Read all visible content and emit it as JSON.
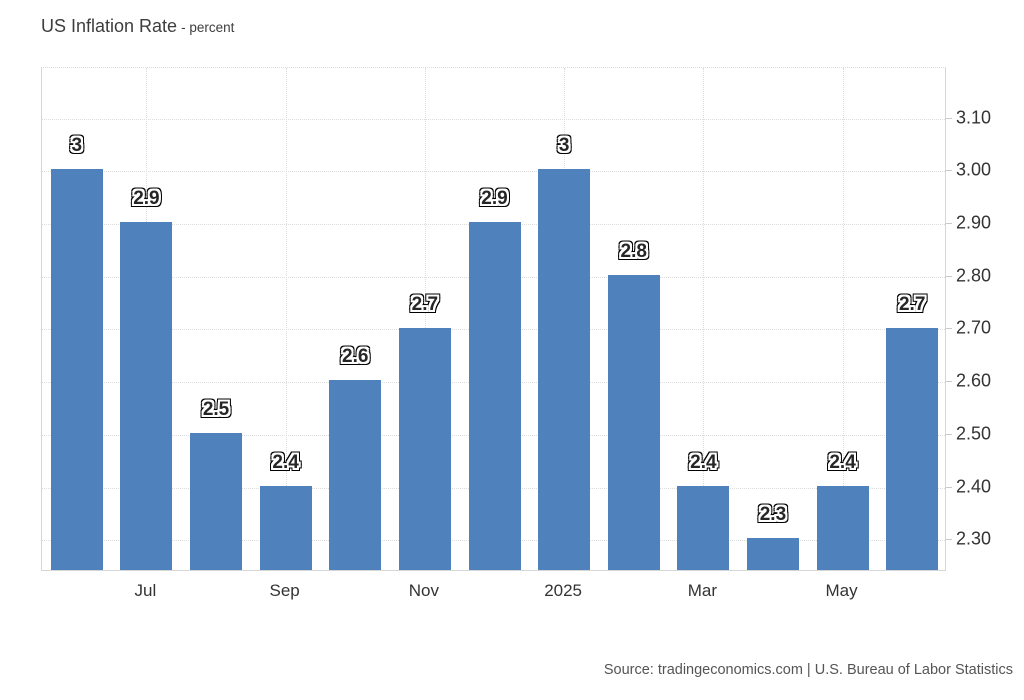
{
  "title": {
    "main": "US Inflation Rate",
    "sub": "- percent"
  },
  "source": "Source: tradingeconomics.com | U.S. Bureau of Labor Statistics",
  "colors": {
    "bar": "#4F81BD",
    "gridline": "#dcdcdc",
    "plot_border": "#d6d6d6",
    "axis_text": "#333333",
    "title_text": "#3d3d3d",
    "source_text": "#555555",
    "value_label_text": "#262626",
    "background": "#ffffff"
  },
  "chart_data": {
    "type": "bar",
    "title": "US Inflation Rate - percent",
    "xlabel": "",
    "ylabel": "percent",
    "categories": [
      "",
      "Jul",
      "",
      "Sep",
      "",
      "Nov",
      "",
      "2025",
      "",
      "Mar",
      "",
      "May",
      ""
    ],
    "values": [
      3,
      2.9,
      2.5,
      2.4,
      2.6,
      2.7,
      2.9,
      3,
      2.8,
      2.4,
      2.3,
      2.4,
      2.7
    ],
    "bar_value_labels": [
      "3",
      "2.9",
      "2.5",
      "2.4",
      "2.6",
      "2.7",
      "2.9",
      "3",
      "2.8",
      "2.4",
      "2.3",
      "2.4",
      "2.7"
    ],
    "y_ticks": [
      {
        "value": 3.1,
        "label": "3.10"
      },
      {
        "value": 3.0,
        "label": "3.00"
      },
      {
        "value": 2.9,
        "label": "2.90"
      },
      {
        "value": 2.8,
        "label": "2.80"
      },
      {
        "value": 2.7,
        "label": "2.70"
      },
      {
        "value": 2.6,
        "label": "2.60"
      },
      {
        "value": 2.5,
        "label": "2.50"
      },
      {
        "value": 2.4,
        "label": "2.40"
      },
      {
        "value": 2.3,
        "label": "2.30"
      }
    ],
    "ylim": [
      2.24,
      3.196
    ],
    "grid": true,
    "legend": false,
    "y_axis_side": "right",
    "value_labels_shown": true
  }
}
